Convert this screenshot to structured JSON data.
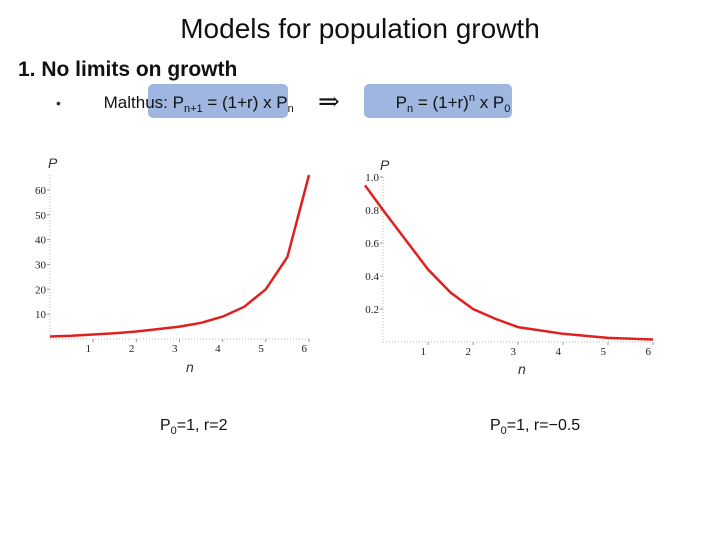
{
  "title": "Models for population growth",
  "heading": "1. No limits on growth",
  "bullet": "•",
  "formula_left": {
    "prefix": "Malthus:",
    "parts": [
      "P",
      "n+1",
      " = (1+r) x P",
      "n"
    ]
  },
  "implies": "⇒",
  "formula_right": {
    "parts": [
      "P",
      "n",
      " = (1+r)",
      "n",
      " x P",
      "0"
    ]
  },
  "chart_data": [
    {
      "type": "line",
      "ylabel": "P",
      "xlabel": "n",
      "caption": [
        "P",
        "0",
        "=1, r=2"
      ],
      "x": [
        0,
        0.5,
        1,
        1.5,
        2,
        2.5,
        3,
        3.5,
        4,
        4.5,
        5,
        5.5,
        6
      ],
      "values": [
        1,
        1.3,
        1.8,
        2.3,
        3,
        4,
        5,
        6.5,
        9,
        13,
        20,
        33,
        66
      ],
      "color": "#e02020",
      "xlim": [
        0,
        6
      ],
      "ylim": [
        0,
        66
      ],
      "xticks": [
        1,
        2,
        3,
        4,
        5,
        6
      ],
      "yticks": [
        10,
        20,
        30,
        40,
        50,
        60
      ]
    },
    {
      "type": "line",
      "ylabel": "P",
      "xlabel": "n",
      "caption": [
        "P",
        "0",
        "=1, r=−0.5"
      ],
      "x": [
        -0.4,
        0,
        0.5,
        1,
        1.5,
        2,
        2.5,
        3,
        4,
        5,
        6
      ],
      "values": [
        0.95,
        0.8,
        0.62,
        0.44,
        0.3,
        0.2,
        0.14,
        0.09,
        0.05,
        0.025,
        0.015
      ],
      "color": "#e02020",
      "xlim": [
        0,
        6
      ],
      "ylim": [
        0,
        1
      ],
      "xticks": [
        1,
        2,
        3,
        4,
        5,
        6
      ],
      "yticks": [
        0.2,
        0.4,
        0.6,
        0.8,
        {
          "value": 1,
          "label": "1.0"
        }
      ]
    }
  ]
}
